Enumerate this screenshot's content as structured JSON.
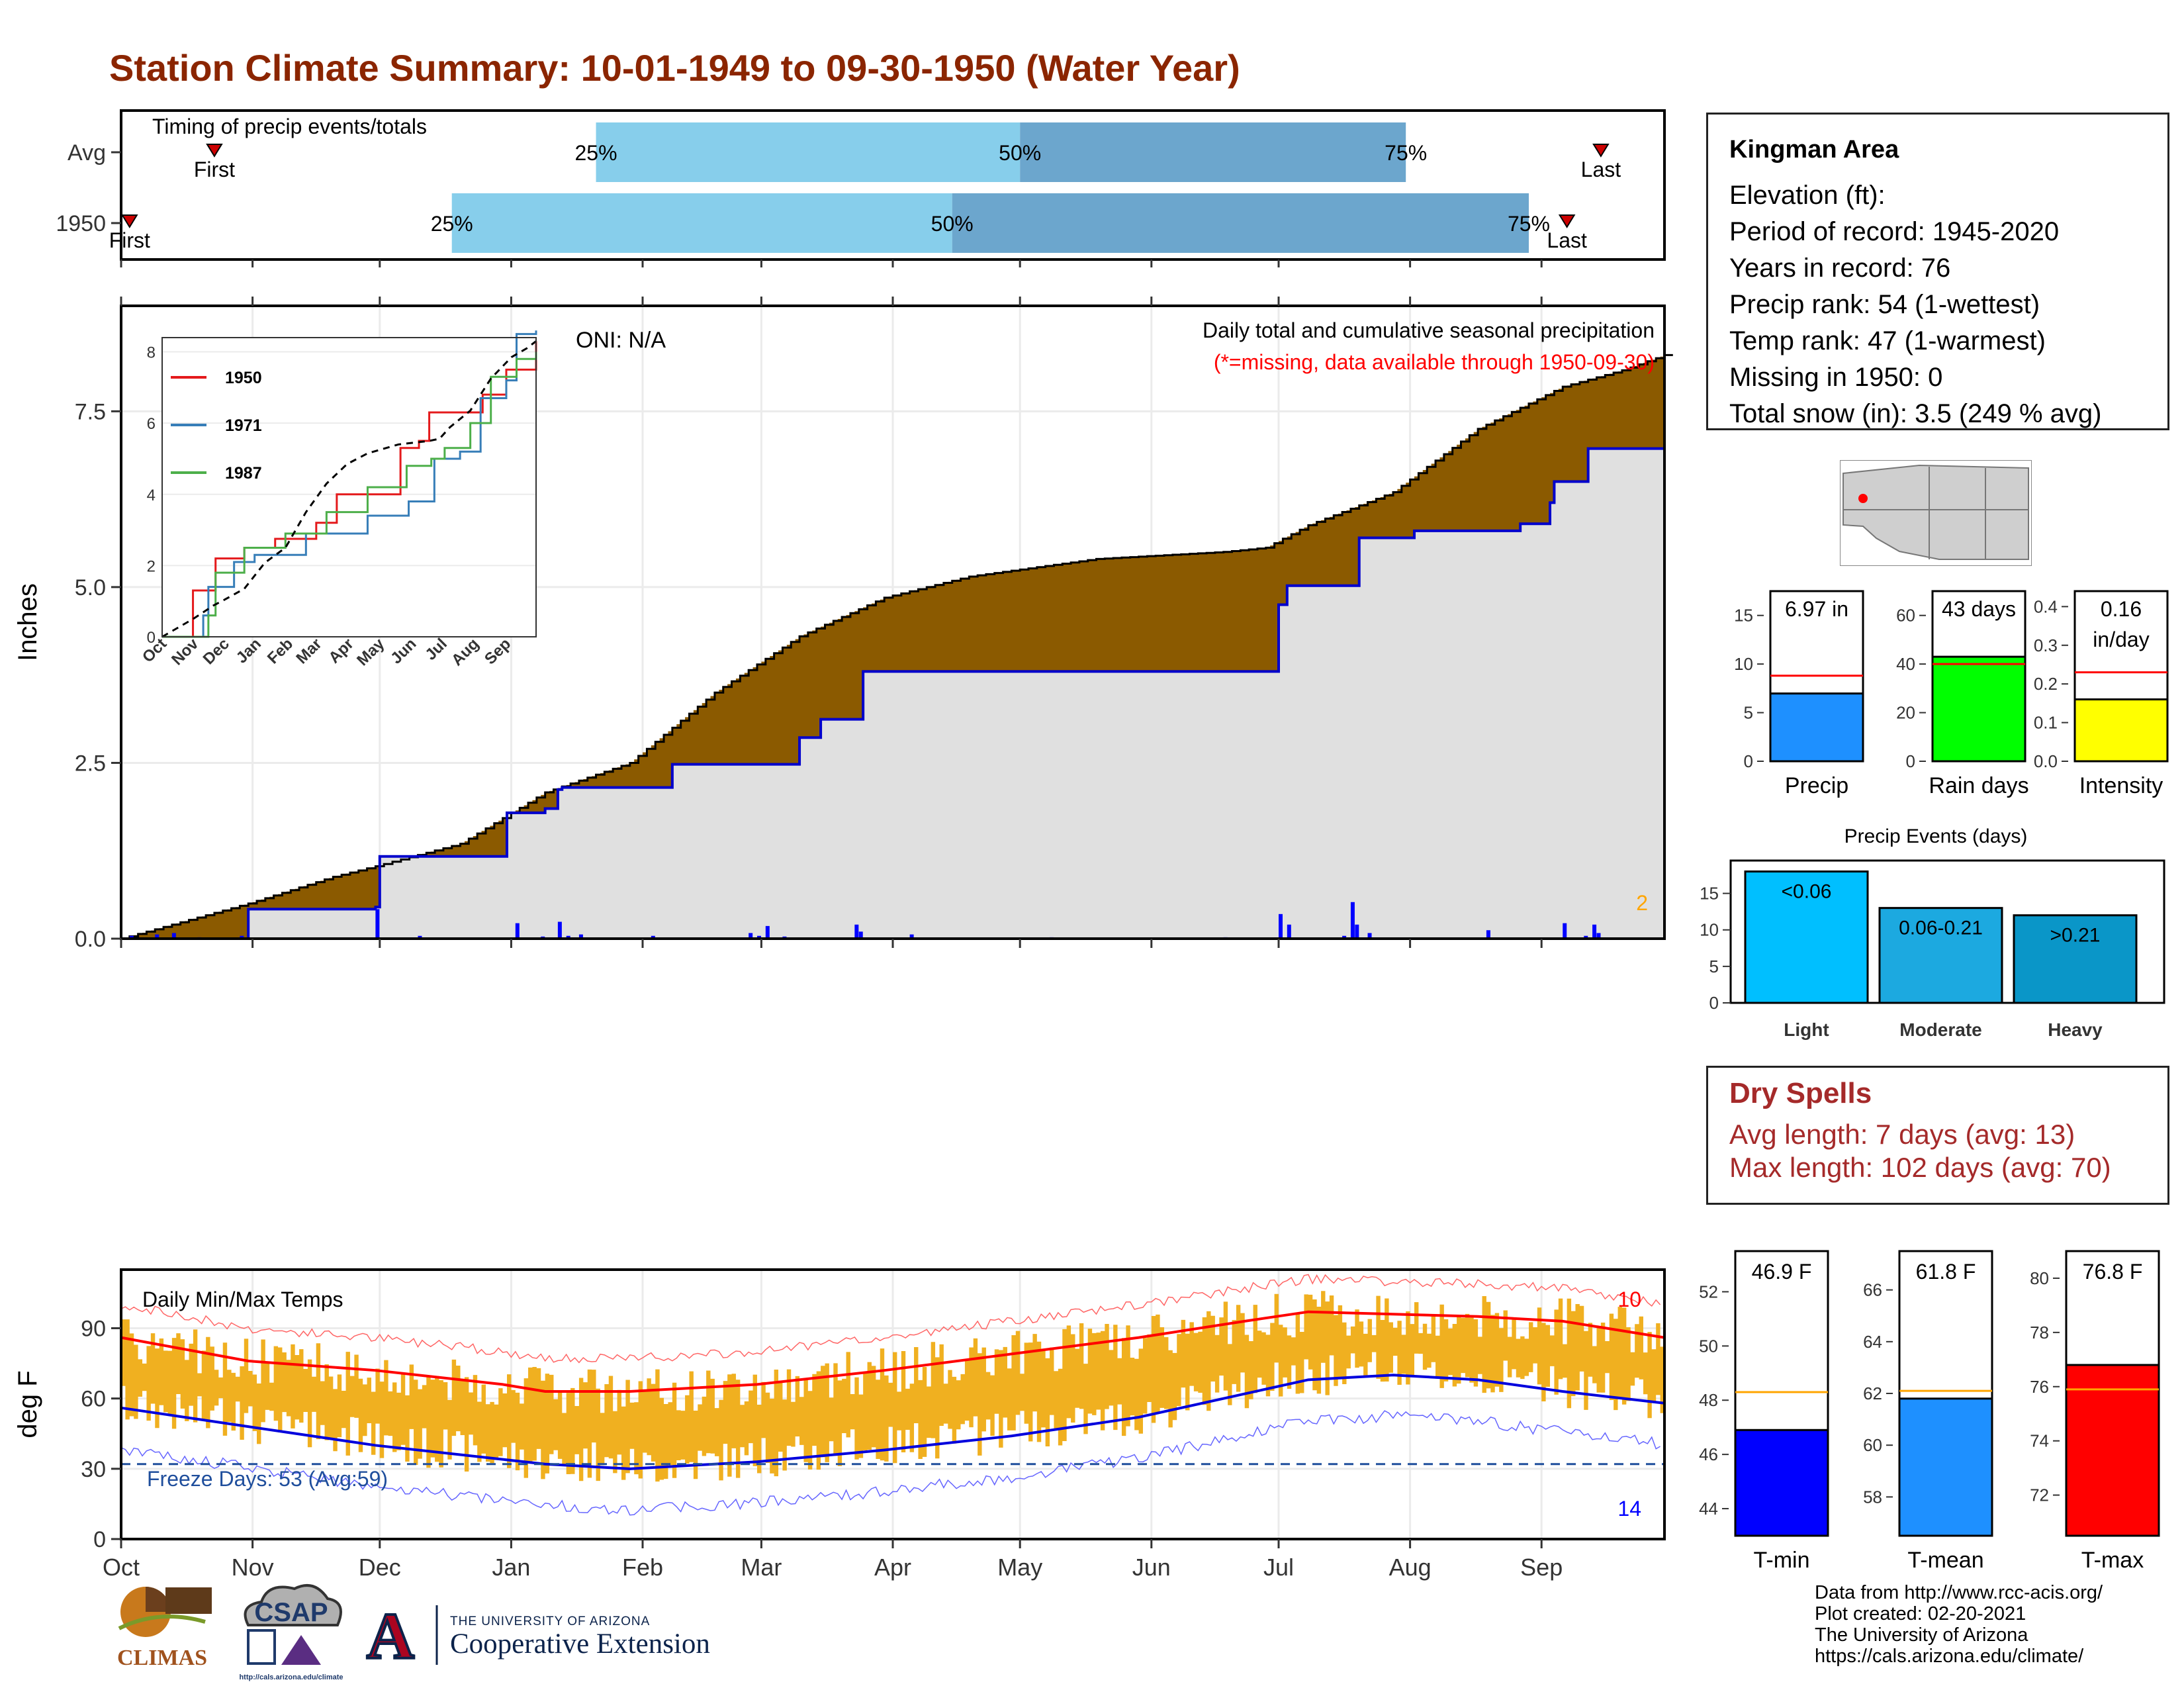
{
  "header": {
    "title": "Station Climate Summary: 10-01-1949 to 09-30-1950 (Water Year)"
  },
  "timing": {
    "label": "Timing of precip events/totals",
    "rows": [
      {
        "name": "Avg",
        "first": 22,
        "p25": 112,
        "p50": 212,
        "p75": 303,
        "last": 349,
        "first_label": "First",
        "last_label": "Last"
      },
      {
        "name": "1950",
        "first": 2,
        "p25": 78,
        "p50": 196,
        "p75": 332,
        "last": 341,
        "first_label": "First",
        "last_label": "Last"
      }
    ],
    "pct_labels": [
      "25%",
      "50%",
      "75%"
    ],
    "colors": {
      "light": "#87ceeb",
      "dark": "#6ca6cd",
      "marker": "#cc0000"
    }
  },
  "precip_panel": {
    "ylabel": "Inches",
    "oni": "ONI: N/A",
    "desc1": "Daily total and cumulative seasonal precipitation",
    "desc2": "(*=missing, data available through 1950-09-30)",
    "corner": "2",
    "ylim": [
      0,
      9.0
    ],
    "yticks": [
      "0.0",
      "2.5",
      "5.0",
      "7.5"
    ],
    "colors": {
      "deficit": "#8b5a00",
      "surplus": "#008000",
      "fill": "#e0e0e0",
      "line": "#0000cc",
      "avg": "#000000"
    }
  },
  "inset": {
    "years": [
      "1950",
      "1971",
      "1987"
    ],
    "colors": [
      "#e41a1c",
      "#377eb8",
      "#4daf4a"
    ],
    "yticks": [
      "0",
      "2",
      "4",
      "6",
      "8"
    ],
    "months": [
      "Oct",
      "Nov",
      "Dec",
      "Jan",
      "Feb",
      "Mar",
      "Apr",
      "May",
      "Jun",
      "Jul",
      "Aug",
      "Sep"
    ]
  },
  "temp_panel": {
    "ylabel": "deg F",
    "label": "Daily Min/Max Temps",
    "freeze": "Freeze Days: 53 (Avg:59)",
    "count_hi": "10",
    "count_lo": "14",
    "ylim": [
      0,
      115
    ],
    "yticks": [
      "0",
      "30",
      "60",
      "90"
    ],
    "colors": {
      "bars": "#f0b020",
      "avgmax": "#ff0000",
      "avgmin": "#0000dd",
      "freeze": "#1f4e9c"
    }
  },
  "months": [
    "Oct",
    "Nov",
    "Dec",
    "Jan",
    "Feb",
    "Mar",
    "Apr",
    "May",
    "Jun",
    "Jul",
    "Aug",
    "Sep"
  ],
  "station": {
    "name": "Kingman Area",
    "lines": [
      "Elevation (ft):",
      "Period of record: 1945-2020",
      "Years in record: 76",
      "Precip rank: 54 (1-wettest)",
      "Temp rank: 47 (1-warmest)",
      "Missing in 1950: 0",
      "Total snow (in): 3.5 (249 % avg)"
    ]
  },
  "summary_bars": [
    {
      "name": "Precip",
      "value": 6.97,
      "avg": 8.8,
      "label": "6.97 in",
      "color": "#1e90ff",
      "ymax": 17.5,
      "ticks": [
        "0",
        "5",
        "10",
        "15"
      ]
    },
    {
      "name": "Rain days",
      "value": 43,
      "avg": 40,
      "label": "43 days",
      "color": "#00ff00",
      "ymax": 70,
      "ticks": [
        "0",
        "20",
        "40",
        "60"
      ]
    },
    {
      "name": "Intensity",
      "value": 0.16,
      "avg": 0.23,
      "label": "0.16 in/day",
      "color": "#ffff00",
      "ymax": 0.44,
      "ticks": [
        "0.0",
        "0.1",
        "0.2",
        "0.3",
        "0.4"
      ]
    }
  ],
  "events": {
    "title": "Precip Events (days)",
    "ticks": [
      "0",
      "5",
      "10",
      "15"
    ],
    "bars": [
      {
        "name": "Light",
        "value": 18,
        "label": "<0.06",
        "color": "#00bfff"
      },
      {
        "name": "Moderate",
        "value": 13,
        "label": "0.06-0.21",
        "color": "#1ca9e0"
      },
      {
        "name": "Heavy",
        "value": 12,
        "label": ">0.21",
        "color": "#0a96c8"
      }
    ]
  },
  "dry_spells": {
    "title": "Dry Spells",
    "avg": "Avg length: 7 days (avg: 13)",
    "max": "Max length: 102 days (avg: 70)"
  },
  "temp_bars": [
    {
      "name": "T-min",
      "value": 46.9,
      "avg": 48.3,
      "label": "46.9 F",
      "color": "#0000ff",
      "ymin": 43,
      "ymax": 53.5,
      "ticks": [
        "44",
        "46",
        "48",
        "50",
        "52"
      ]
    },
    {
      "name": "T-mean",
      "value": 61.8,
      "avg": 62.1,
      "label": "61.8 F",
      "color": "#1e90ff",
      "ymin": 56.5,
      "ymax": 67.5,
      "ticks": [
        "58",
        "60",
        "62",
        "64",
        "66"
      ]
    },
    {
      "name": "T-max",
      "value": 76.8,
      "avg": 75.9,
      "label": "76.8 F",
      "color": "#ff0000",
      "ymin": 70.5,
      "ymax": 81,
      "ticks": [
        "72",
        "74",
        "76",
        "78",
        "80"
      ]
    }
  ],
  "credits": [
    "Data from http://www.rcc-acis.org/",
    "Plot created: 02-20-2021",
    "The University of Arizona",
    "https://cals.arizona.edu/climate/"
  ],
  "logos": {
    "climas": "CLIMAS",
    "csap": "CSAP",
    "csap_url": "http://cals.arizona.edu/climate",
    "ua_small": "THE UNIVERSITY OF ARIZONA",
    "ua_big": "Cooperative Extension",
    "ua_letter": "A"
  },
  "chart_data": {
    "type": "area",
    "x_units": "day of water year (0 = Oct 1)",
    "observed_cumulative_1950": [
      [
        0,
        0
      ],
      [
        30,
        0.42
      ],
      [
        60,
        0.45
      ],
      [
        61,
        1.17
      ],
      [
        90,
        1.17
      ],
      [
        91,
        1.79
      ],
      [
        100,
        1.85
      ],
      [
        103,
        2.12
      ],
      [
        104,
        2.15
      ],
      [
        120,
        2.15
      ],
      [
        130,
        2.48
      ],
      [
        160,
        2.86
      ],
      [
        165,
        3.12
      ],
      [
        175,
        3.8
      ],
      [
        272,
        3.8
      ],
      [
        273,
        4.75
      ],
      [
        275,
        5.02
      ],
      [
        290,
        5.02
      ],
      [
        292,
        5.7
      ],
      [
        305,
        5.8
      ],
      [
        330,
        5.9
      ],
      [
        337,
        6.2
      ],
      [
        338,
        6.5
      ],
      [
        346,
        6.97
      ],
      [
        364,
        6.97
      ]
    ],
    "average_cumulative": [
      [
        0,
        0
      ],
      [
        30,
        0.5
      ],
      [
        50,
        0.88
      ],
      [
        60,
        1.03
      ],
      [
        80,
        1.35
      ],
      [
        100,
        2.08
      ],
      [
        120,
        2.5
      ],
      [
        140,
        3.5
      ],
      [
        160,
        4.3
      ],
      [
        180,
        4.85
      ],
      [
        200,
        5.15
      ],
      [
        230,
        5.4
      ],
      [
        260,
        5.5
      ],
      [
        270,
        5.56
      ],
      [
        280,
        5.88
      ],
      [
        300,
        6.35
      ],
      [
        320,
        7.25
      ],
      [
        340,
        7.85
      ],
      [
        355,
        8.1
      ],
      [
        364,
        8.3
      ]
    ],
    "daily_precip": [
      [
        2,
        0.04
      ],
      [
        8,
        0.06
      ],
      [
        12,
        0.08
      ],
      [
        18,
        0.02
      ],
      [
        28,
        0.04
      ],
      [
        55,
        0.01
      ],
      [
        60,
        0.42
      ],
      [
        70,
        0.04
      ],
      [
        93,
        0.22
      ],
      [
        99,
        0.03
      ],
      [
        103,
        0.24
      ],
      [
        105,
        0.04
      ],
      [
        108,
        0.06
      ],
      [
        125,
        0.04
      ],
      [
        148,
        0.08
      ],
      [
        150,
        0.04
      ],
      [
        152,
        0.18
      ],
      [
        156,
        0.03
      ],
      [
        173,
        0.2
      ],
      [
        174,
        0.1
      ],
      [
        186,
        0.06
      ],
      [
        219,
        0.02
      ],
      [
        260,
        0.02
      ],
      [
        273,
        0.35
      ],
      [
        275,
        0.2
      ],
      [
        288,
        0.04
      ],
      [
        290,
        0.52
      ],
      [
        291,
        0.2
      ],
      [
        294,
        0.08
      ],
      [
        322,
        0.12
      ],
      [
        340,
        0.22
      ],
      [
        345,
        0.04
      ],
      [
        347,
        0.2
      ],
      [
        348,
        0.08
      ]
    ],
    "temp_avg_max": [
      [
        0,
        86
      ],
      [
        30,
        76
      ],
      [
        60,
        72
      ],
      [
        90,
        66
      ],
      [
        100,
        63
      ],
      [
        120,
        63
      ],
      [
        150,
        66
      ],
      [
        180,
        72
      ],
      [
        210,
        79
      ],
      [
        240,
        86
      ],
      [
        265,
        93
      ],
      [
        280,
        97
      ],
      [
        300,
        96
      ],
      [
        320,
        95
      ],
      [
        340,
        93
      ],
      [
        364,
        86
      ]
    ],
    "temp_avg_min": [
      [
        0,
        56
      ],
      [
        30,
        48
      ],
      [
        60,
        40
      ],
      [
        90,
        34
      ],
      [
        100,
        32
      ],
      [
        120,
        30
      ],
      [
        150,
        33
      ],
      [
        180,
        38
      ],
      [
        210,
        44
      ],
      [
        240,
        52
      ],
      [
        265,
        62
      ],
      [
        280,
        68
      ],
      [
        300,
        70
      ],
      [
        320,
        68
      ],
      [
        340,
        63
      ],
      [
        364,
        58
      ]
    ],
    "freeze_line": 32
  }
}
